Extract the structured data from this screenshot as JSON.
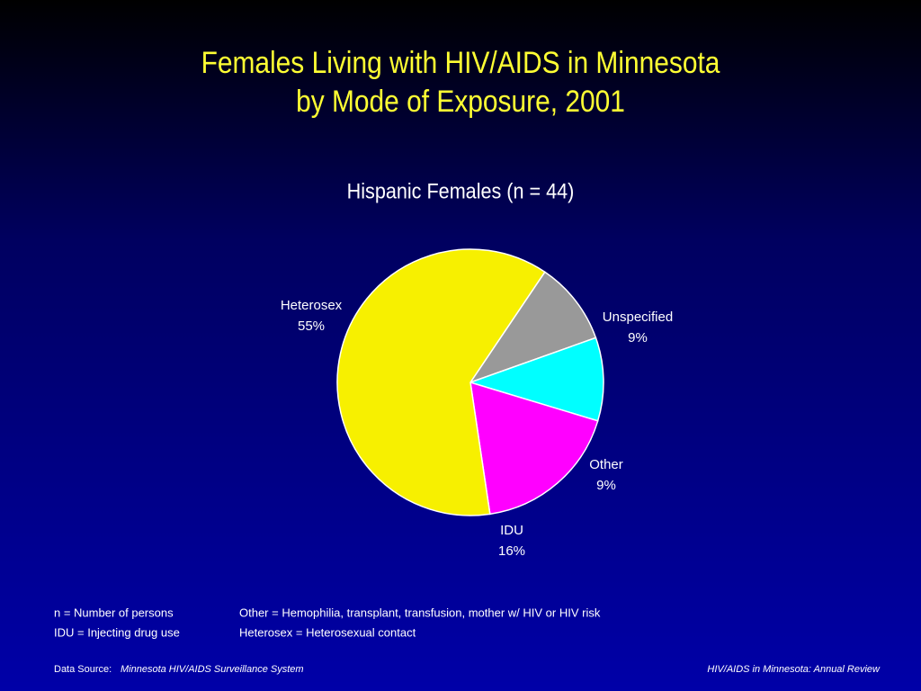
{
  "chart_data": {
    "type": "pie",
    "title": [
      "Females Living with HIV/AIDS in Minnesota",
      "by Mode of Exposure, 2001"
    ],
    "subtitle": "Hispanic Females (n = 44)",
    "categories": [
      "Unspecified",
      "Other",
      "IDU",
      "Heterosex"
    ],
    "values": [
      9,
      9,
      16,
      55
    ],
    "value_labels": [
      "9%",
      "9%",
      "16%",
      "55%"
    ],
    "colors": [
      "#999999",
      "#00ffff",
      "#ff00ff",
      "#f7f000"
    ]
  },
  "notes": [
    [
      "n = Number of persons",
      "Other = Hemophilia, transplant, transfusion, mother w/ HIV or HIV risk"
    ],
    [
      "IDU = Injecting drug use",
      "Heterosex = Heterosexual contact"
    ]
  ],
  "footer": {
    "source_label": "Data Source:",
    "source": "Minnesota HIV/AIDS Surveillance System",
    "publication": "HIV/AIDS in Minnesota: Annual Review"
  }
}
